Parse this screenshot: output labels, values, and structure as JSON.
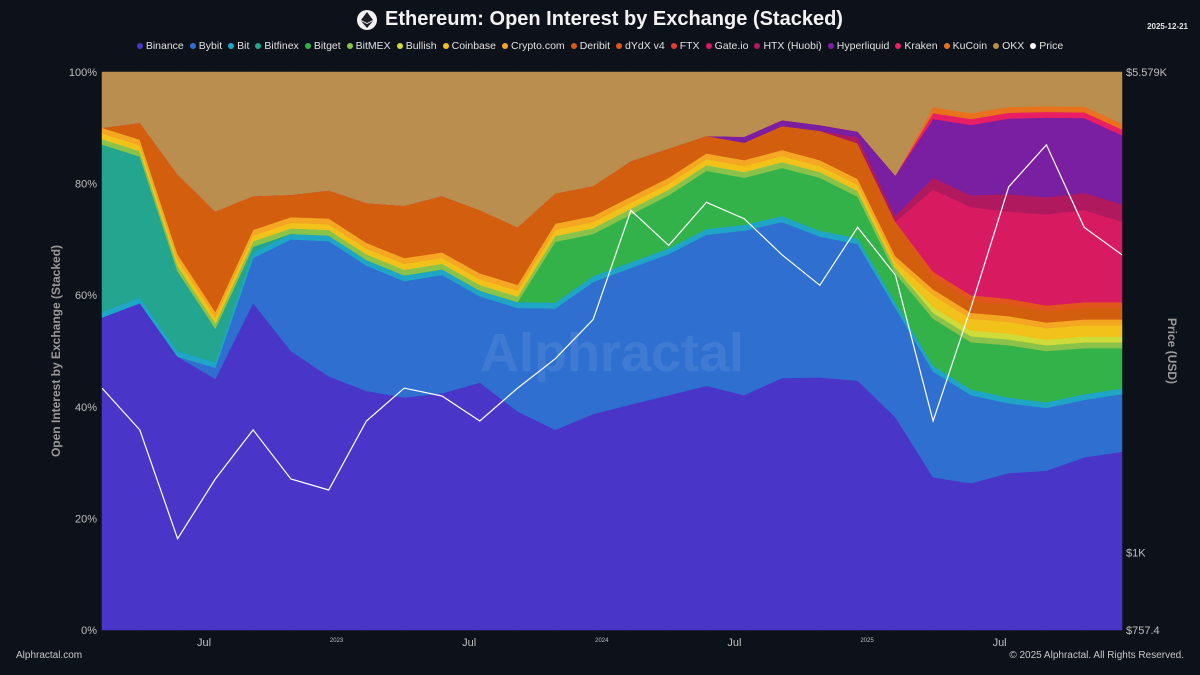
{
  "header": {
    "title": "Ethereum: Open Interest by Exchange (Stacked)",
    "date": "2025-12-21"
  },
  "footer": {
    "left": "Alphractal.com",
    "right": "© 2025 Alphractal. All Rights Reserved."
  },
  "watermark": "Alphractal",
  "icons": {
    "title_logo": "ethereum-icon"
  },
  "chart_data": {
    "type": "area",
    "title": "Ethereum: Open Interest by Exchange (Stacked)",
    "ylabel": "Open Interest by Exchange (Stacked)",
    "y2label": "Price (USD)",
    "ylim": [
      0,
      100
    ],
    "y2_scale": "log",
    "y2_ticks": [
      "$757.4",
      "$1K",
      "$5.579K"
    ],
    "y_ticks": [
      "0%",
      "20%",
      "40%",
      "60%",
      "80%",
      "100%"
    ],
    "x_tick_labels": [
      "Jul",
      "2023",
      "Jul",
      "2024",
      "Jul",
      "2025",
      "Jul"
    ],
    "x_tick_pos": [
      0.1,
      0.23,
      0.36,
      0.49,
      0.62,
      0.75,
      0.88
    ],
    "legend_placement": "top",
    "series": [
      {
        "name": "Binance",
        "color": "#4a35c9",
        "values": [
          56,
          58,
          48,
          45,
          58,
          50,
          45,
          42,
          40,
          42,
          43,
          38,
          33,
          36,
          38,
          40,
          42,
          40,
          42,
          43,
          42,
          37,
          26,
          25,
          27,
          28,
          30,
          31
        ]
      },
      {
        "name": "Bybit",
        "color": "#2f6fd0",
        "values": [
          0,
          0,
          0,
          2,
          8,
          20,
          24,
          22,
          20,
          21,
          15,
          18,
          20,
          22,
          23,
          24,
          26,
          28,
          26,
          24,
          23,
          19,
          18,
          15,
          12,
          11,
          10,
          10
        ]
      },
      {
        "name": "Bit",
        "color": "#1fa6c7",
        "values": [
          1,
          1,
          1,
          1,
          1,
          1,
          1,
          1,
          1,
          1,
          1,
          1,
          1,
          1,
          1,
          1,
          1,
          1,
          1,
          1,
          1,
          1,
          1,
          1,
          1,
          1,
          1,
          1
        ]
      },
      {
        "name": "Bitfinex",
        "color": "#23a58f",
        "values": [
          30,
          25,
          14,
          6,
          1,
          0,
          0,
          0,
          0,
          0,
          0,
          0,
          0,
          0,
          0,
          0,
          0,
          0,
          0,
          0,
          0,
          0,
          0,
          0,
          0,
          0,
          0,
          0
        ]
      },
      {
        "name": "Bitget",
        "color": "#33b24a",
        "values": [
          0,
          0,
          0,
          0,
          0,
          0,
          0,
          0,
          0,
          0,
          0,
          0,
          10,
          7,
          8,
          9,
          10,
          8,
          8,
          9,
          7,
          5,
          8,
          8,
          9,
          9,
          8,
          7
        ]
      },
      {
        "name": "BitMEX",
        "color": "#8bc34a",
        "values": [
          1,
          1,
          1,
          1,
          1,
          1,
          1,
          1,
          1,
          1,
          1,
          1,
          1,
          1,
          1,
          1,
          1,
          1,
          1,
          1,
          1,
          1,
          1,
          1,
          1,
          1,
          1,
          1
        ]
      },
      {
        "name": "Bullish",
        "color": "#cddc39",
        "values": [
          0,
          0,
          0,
          0,
          0,
          0,
          0,
          0,
          0,
          0,
          0,
          0,
          0,
          0,
          0,
          0,
          0,
          0,
          0,
          0,
          0,
          0,
          1,
          1,
          1,
          1,
          1,
          1
        ]
      },
      {
        "name": "Coinbase",
        "color": "#f2c21a",
        "values": [
          1,
          1,
          1,
          1,
          1,
          1,
          1,
          1,
          1,
          1,
          1,
          1,
          1,
          1,
          1,
          1,
          1,
          1,
          1,
          1,
          1,
          1,
          2,
          2,
          2,
          2,
          2,
          2
        ]
      },
      {
        "name": "Crypto.com",
        "color": "#f5a623",
        "values": [
          1,
          1,
          1,
          1,
          1,
          1,
          1,
          1,
          1,
          1,
          1,
          1,
          1,
          1,
          1,
          1,
          1,
          1,
          1,
          1,
          1,
          1,
          1,
          1,
          1,
          1,
          1,
          1
        ]
      },
      {
        "name": "Deribit",
        "color": "#d35f0e",
        "values": [
          0,
          3,
          14,
          18,
          6,
          4,
          5,
          7,
          9,
          10,
          11,
          10,
          5,
          5,
          6,
          5,
          3,
          3,
          4,
          5,
          6,
          6,
          2,
          2,
          2,
          2,
          2,
          2
        ]
      },
      {
        "name": "dYdX v4",
        "color": "#e2561d",
        "values": [
          0,
          0,
          0,
          0,
          0,
          0,
          0,
          0,
          0,
          0,
          0,
          0,
          0,
          0,
          0,
          0,
          0,
          0,
          0,
          0,
          0,
          0,
          1,
          1,
          1,
          1,
          1,
          1
        ]
      },
      {
        "name": "FTX",
        "color": "#e23d30",
        "values": [
          0,
          0,
          0,
          0,
          0,
          0,
          0,
          0,
          0,
          0,
          0,
          0,
          0,
          0,
          0,
          0,
          0,
          0,
          0,
          0,
          0,
          0,
          0,
          0,
          0,
          0,
          0,
          0
        ]
      },
      {
        "name": "Gate.io",
        "color": "#d81b60",
        "values": [
          0,
          0,
          0,
          0,
          0,
          0,
          0,
          0,
          0,
          0,
          0,
          0,
          0,
          0,
          0,
          0,
          0,
          0,
          0,
          0,
          0,
          0,
          14,
          15,
          15,
          16,
          16,
          14
        ]
      },
      {
        "name": "HTX (Huobi)",
        "color": "#b0195e",
        "values": [
          0,
          0,
          0,
          0,
          0,
          0,
          0,
          0,
          0,
          0,
          0,
          0,
          0,
          0,
          0,
          0,
          0,
          0,
          0,
          0,
          1,
          1,
          2,
          2,
          3,
          3,
          3,
          3
        ]
      },
      {
        "name": "Hyperliquid",
        "color": "#7b1fa2",
        "values": [
          0,
          0,
          0,
          0,
          0,
          0,
          0,
          0,
          0,
          0,
          0,
          0,
          0,
          0,
          0,
          0,
          0,
          1,
          1,
          1,
          1,
          7,
          10,
          12,
          13,
          14,
          13,
          12
        ]
      },
      {
        "name": "Kraken",
        "color": "#e91e63",
        "values": [
          0,
          0,
          0,
          0,
          0,
          0,
          0,
          0,
          0,
          0,
          0,
          0,
          0,
          0,
          0,
          0,
          0,
          0,
          0,
          0,
          0,
          0,
          1,
          1,
          1,
          1,
          1,
          1
        ]
      },
      {
        "name": "KuCoin",
        "color": "#e8731c",
        "values": [
          0,
          0,
          0,
          0,
          0,
          0,
          0,
          0,
          0,
          0,
          0,
          0,
          0,
          0,
          0,
          0,
          0,
          0,
          0,
          0,
          0,
          0,
          1,
          1,
          1,
          1,
          1,
          1
        ]
      },
      {
        "name": "OKX",
        "color": "#b98e4f",
        "values": [
          10,
          9,
          18,
          25,
          22,
          22,
          21,
          23,
          23,
          22,
          24,
          27,
          20,
          19,
          15,
          13,
          11,
          11,
          8,
          9,
          10,
          18,
          6,
          7,
          6,
          6,
          6,
          9
        ]
      },
      {
        "name": "Price",
        "color": "#ffffff",
        "values": [
          1800,
          1550,
          1050,
          1300,
          1550,
          1300,
          1250,
          1600,
          1800,
          1750,
          1600,
          1800,
          2000,
          2300,
          3400,
          3000,
          3500,
          3300,
          2900,
          2600,
          3200,
          2700,
          1600,
          2400,
          3700,
          4300,
          3200,
          2900
        ]
      }
    ]
  }
}
